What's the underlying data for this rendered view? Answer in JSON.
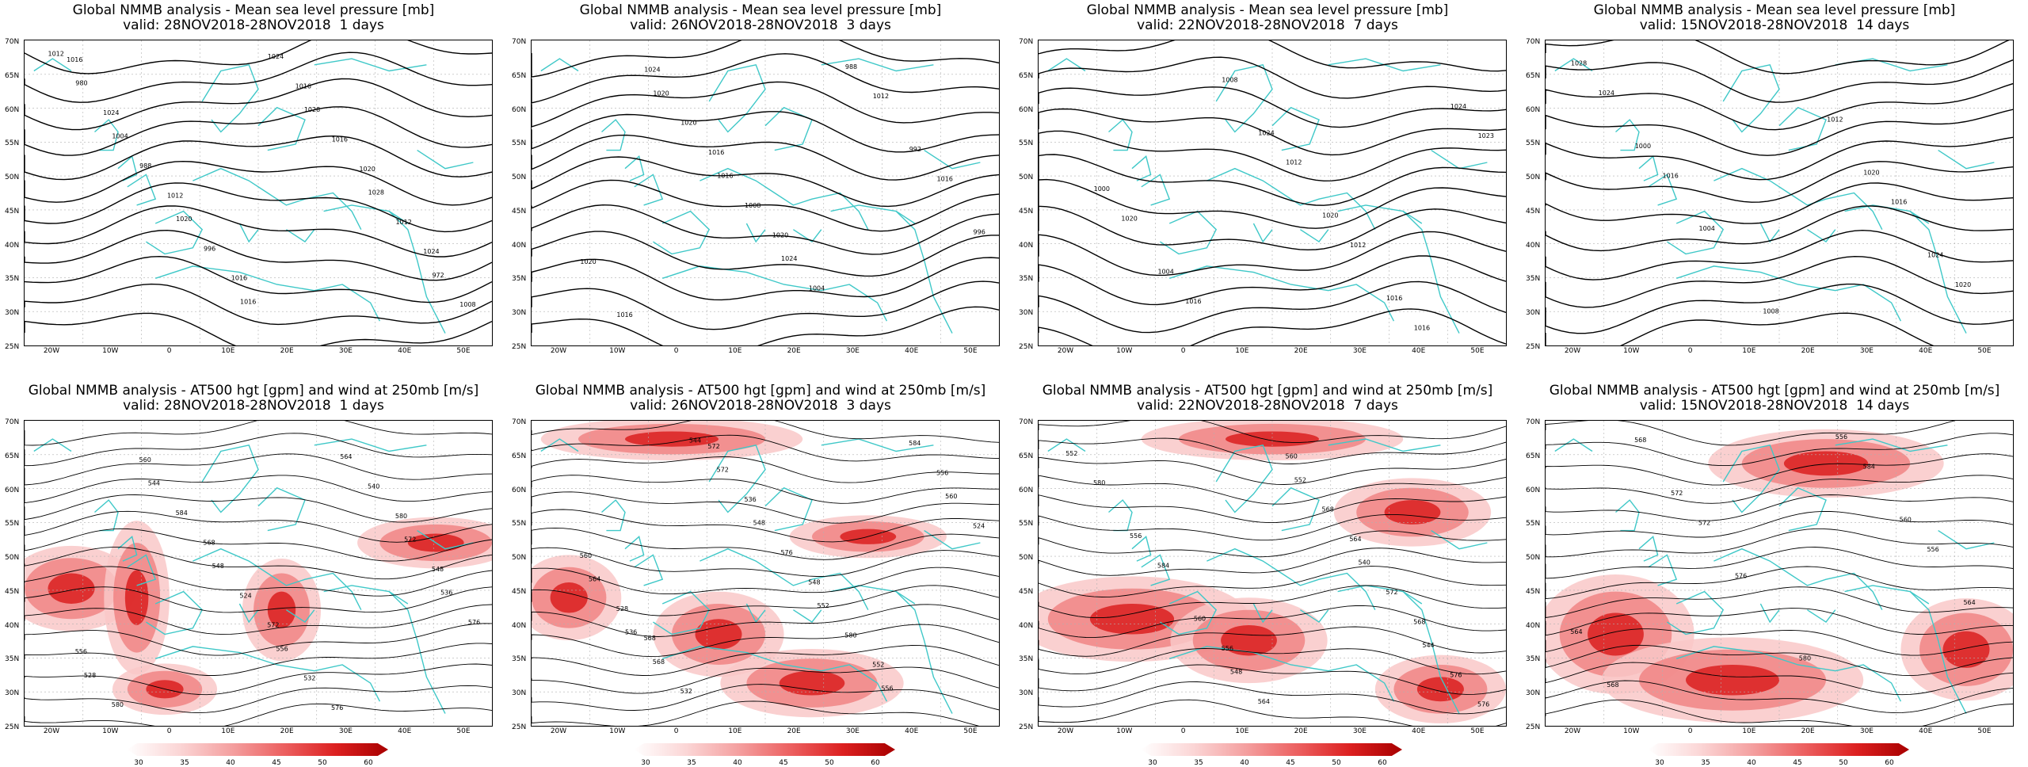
{
  "panels": [
    {
      "line1": "Global NMMB analysis - Mean sea level pressure [mb]",
      "line2": "valid: 28NOV2018-28NOV2018  1 days"
    },
    {
      "line1": "Global NMMB analysis - Mean sea level pressure [mb]",
      "line2": "valid: 26NOV2018-28NOV2018  3 days"
    },
    {
      "line1": "Global NMMB analysis - Mean sea level pressure [mb]",
      "line2": "valid: 22NOV2018-28NOV2018  7 days"
    },
    {
      "line1": "Global NMMB analysis - Mean sea level pressure [mb]",
      "line2": "valid: 15NOV2018-28NOV2018  14 days"
    },
    {
      "line1": "Global NMMB analysis - AT500 hgt [gpm] and wind at 250mb [m/s]",
      "line2": "valid: 28NOV2018-28NOV2018  1 days"
    },
    {
      "line1": "Global NMMB analysis - AT500 hgt [gpm] and wind at 250mb [m/s]",
      "line2": "valid: 26NOV2018-28NOV2018  3 days"
    },
    {
      "line1": "Global NMMB analysis - AT500 hgt [gpm] and wind at 250mb [m/s]",
      "line2": "valid: 22NOV2018-28NOV2018  7 days"
    },
    {
      "line1": "Global NMMB analysis - AT500 hgt [gpm] and wind at 250mb [m/s]",
      "line2": "valid: 15NOV2018-28NOV2018  14 days"
    }
  ],
  "lat_labels": [
    "70N",
    "65N",
    "60N",
    "55N",
    "50N",
    "45N",
    "40N",
    "35N",
    "30N",
    "25N"
  ],
  "lon_labels": [
    "20W",
    "10W",
    "0",
    "10E",
    "20E",
    "30E",
    "40E",
    "50E"
  ],
  "colorbar_ticks": [
    "30",
    "35",
    "40",
    "45",
    "50",
    "60"
  ],
  "colors": {
    "coast": "#3fc8c8",
    "contour": "#000000",
    "jet_light": "#f9c8c8",
    "jet_mid": "#f08080",
    "jet_dark": "#d81818",
    "grid": "#b0b0b0"
  },
  "mslp_labels": [
    [
      "1012",
      "1004",
      "1020",
      "1016",
      "1028",
      "1028",
      "972",
      "980",
      "988",
      "996",
      "1024",
      "1016",
      "1012",
      "1008",
      "1024",
      "1012",
      "1016",
      "1016",
      "1020",
      "1024",
      "1016"
    ],
    [
      "1020",
      "1016",
      "1024",
      "988",
      "992",
      "996",
      "1016",
      "1020",
      "1008",
      "1004",
      "1012",
      "1016",
      "1020",
      "1024",
      "1016",
      "1020"
    ],
    [
      "1024",
      "1020",
      "1016",
      "1024",
      "1000",
      "1004",
      "1008",
      "1012",
      "1012",
      "1016",
      "1023",
      "1020",
      "1016"
    ],
    [
      "1020",
      "1024",
      "1028",
      "1000",
      "1004",
      "1008",
      "1012",
      "1016",
      "1020",
      "1024",
      "1016"
    ]
  ],
  "z500_labels": [
    [
      "536",
      "528",
      "544",
      "548",
      "556",
      "564",
      "572",
      "576",
      "580",
      "584",
      "524",
      "532",
      "540",
      "548",
      "556",
      "560",
      "568",
      "572",
      "576",
      "580"
    ],
    [
      "536",
      "544",
      "548",
      "552",
      "556",
      "560",
      "564",
      "568",
      "572",
      "576",
      "580",
      "584",
      "524",
      "528",
      "532",
      "536",
      "548",
      "552",
      "556",
      "560",
      "568",
      "572"
    ],
    [
      "548",
      "552",
      "540",
      "544",
      "552",
      "556",
      "560",
      "564",
      "568",
      "572",
      "576",
      "580",
      "584",
      "556",
      "560",
      "564",
      "568",
      "576"
    ],
    [
      "556",
      "560",
      "564",
      "568",
      "572",
      "576",
      "580",
      "584",
      "556",
      "564",
      "568",
      "572"
    ]
  ]
}
